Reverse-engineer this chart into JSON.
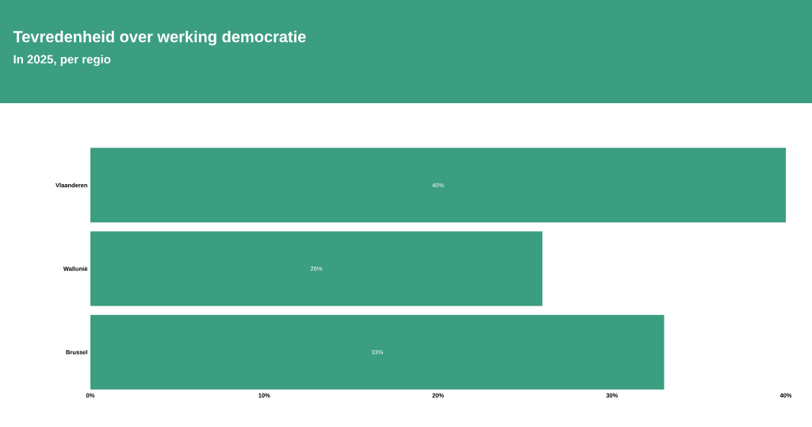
{
  "chart_data": {
    "type": "bar",
    "orientation": "horizontal",
    "title": "Tevredenheid over werking democratie",
    "subtitle": "In 2025, per regio",
    "categories": [
      "Vlaanderen",
      "Wallonië",
      "Brussel"
    ],
    "values": [
      40,
      26,
      33
    ],
    "color": "#3b9e80",
    "value_labels": [
      "40%",
      "26%",
      "33%"
    ],
    "xlim": [
      0,
      40
    ],
    "xticks": [
      {
        "value": 0,
        "label": "0%"
      },
      {
        "value": 10,
        "label": "10%"
      },
      {
        "value": 20,
        "label": "20%"
      },
      {
        "value": 30,
        "label": "30%"
      },
      {
        "value": 40,
        "label": "40%"
      }
    ]
  }
}
